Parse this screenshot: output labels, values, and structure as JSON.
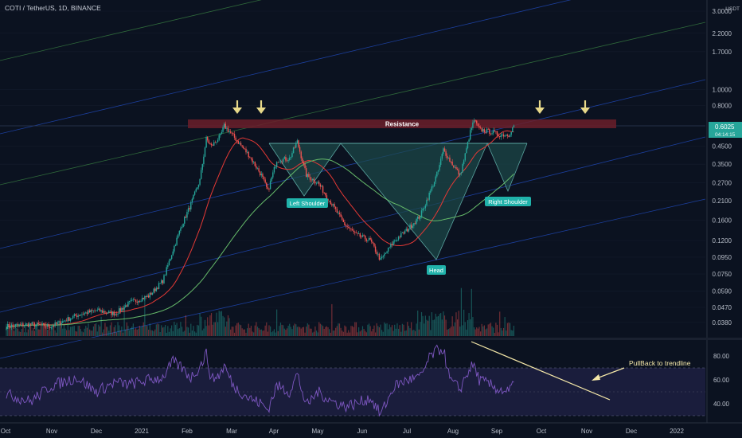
{
  "chart_data": {
    "type": "candlestick",
    "title": "COTI / TetherUS, 1D, BINANCE",
    "price_axis": {
      "unit": "USDT",
      "scale": "log",
      "ticks": [
        "3.0000",
        "2.2000",
        "1.7000",
        "1.0000",
        "0.8000",
        "0.6000",
        "0.4500",
        "0.3500",
        "0.2700",
        "0.2100",
        "0.1600",
        "0.1200",
        "0.0950",
        "0.0750",
        "0.0590",
        "0.0470",
        "0.0380"
      ]
    },
    "last_price": {
      "value": "0.6025",
      "countdown": "04:14:15"
    },
    "x_axis": {
      "labels": [
        "Oct",
        "Nov",
        "Dec",
        "2021",
        "Feb",
        "Mar",
        "Apr",
        "May",
        "Jun",
        "Jul",
        "Aug",
        "Sep",
        "Oct",
        "Nov",
        "Dec",
        "2022"
      ]
    },
    "price_path": [
      [
        "2020-10-01",
        0.036
      ],
      [
        "2020-10-20",
        0.037
      ],
      [
        "2020-11-05",
        0.036
      ],
      [
        "2020-11-25",
        0.042
      ],
      [
        "2020-12-10",
        0.045
      ],
      [
        "2020-12-25",
        0.043
      ],
      [
        "2021-01-05",
        0.05
      ],
      [
        "2021-01-20",
        0.055
      ],
      [
        "2021-01-31",
        0.068
      ],
      [
        "2021-02-08",
        0.105
      ],
      [
        "2021-02-15",
        0.15
      ],
      [
        "2021-02-22",
        0.2
      ],
      [
        "2021-03-01",
        0.28
      ],
      [
        "2021-03-06",
        0.5
      ],
      [
        "2021-03-10",
        0.45
      ],
      [
        "2021-03-17",
        0.52
      ],
      [
        "2021-03-20",
        0.6
      ],
      [
        "2021-03-27",
        0.52
      ],
      [
        "2021-04-08",
        0.4
      ],
      [
        "2021-04-18",
        0.3
      ],
      [
        "2021-04-23",
        0.24
      ],
      [
        "2021-04-30",
        0.37
      ],
      [
        "2021-05-10",
        0.38
      ],
      [
        "2021-05-16",
        0.48
      ],
      [
        "2021-05-23",
        0.3
      ],
      [
        "2021-06-01",
        0.27
      ],
      [
        "2021-06-12",
        0.2
      ],
      [
        "2021-06-22",
        0.15
      ],
      [
        "2021-07-01",
        0.13
      ],
      [
        "2021-07-12",
        0.12
      ],
      [
        "2021-07-20",
        0.091
      ],
      [
        "2021-07-31",
        0.12
      ],
      [
        "2021-08-10",
        0.14
      ],
      [
        "2021-08-20",
        0.17
      ],
      [
        "2021-08-28",
        0.24
      ],
      [
        "2021-09-03",
        0.32
      ],
      [
        "2021-09-07",
        0.43
      ],
      [
        "2021-09-12",
        0.37
      ],
      [
        "2021-09-20",
        0.3
      ],
      [
        "2021-09-24",
        0.4
      ],
      [
        "2021-09-28",
        0.55
      ],
      [
        "2021-10-01",
        0.65
      ],
      [
        "2021-10-05",
        0.57
      ],
      [
        "2021-10-15",
        0.55
      ],
      [
        "2021-10-20",
        0.53
      ],
      [
        "2021-10-28",
        0.53
      ],
      [
        "2021-11-01",
        0.6025
      ]
    ],
    "annotations": {
      "resistance": "Resistance",
      "left_shoulder": "Left Shoulder",
      "head": "Head",
      "right_shoulder": "Right Shoulder",
      "pullback": "PullBack to trendline"
    },
    "rsi": {
      "ticks": [
        "80.00",
        "60.00",
        "40.00"
      ],
      "bands": [
        70,
        30
      ],
      "path": [
        [
          "2020-10-01",
          48
        ],
        [
          "2020-10-20",
          42
        ],
        [
          "2020-11-05",
          55
        ],
        [
          "2020-11-25",
          62
        ],
        [
          "2020-12-10",
          50
        ],
        [
          "2020-12-25",
          58
        ],
        [
          "2021-01-05",
          56
        ],
        [
          "2021-01-20",
          60
        ],
        [
          "2021-01-31",
          62
        ],
        [
          "2021-02-08",
          75
        ],
        [
          "2021-02-15",
          70
        ],
        [
          "2021-02-22",
          62
        ],
        [
          "2021-03-01",
          71
        ],
        [
          "2021-03-06",
          82
        ],
        [
          "2021-03-10",
          60
        ],
        [
          "2021-03-17",
          65
        ],
        [
          "2021-03-20",
          72
        ],
        [
          "2021-03-27",
          55
        ],
        [
          "2021-04-08",
          45
        ],
        [
          "2021-04-18",
          40
        ],
        [
          "2021-04-23",
          35
        ],
        [
          "2021-04-30",
          55
        ],
        [
          "2021-05-10",
          50
        ],
        [
          "2021-05-16",
          65
        ],
        [
          "2021-05-23",
          38
        ],
        [
          "2021-06-01",
          50
        ],
        [
          "2021-06-12",
          42
        ],
        [
          "2021-06-22",
          38
        ],
        [
          "2021-07-01",
          40
        ],
        [
          "2021-07-12",
          45
        ],
        [
          "2021-07-20",
          31
        ],
        [
          "2021-07-31",
          55
        ],
        [
          "2021-08-10",
          60
        ],
        [
          "2021-08-20",
          62
        ],
        [
          "2021-08-28",
          80
        ],
        [
          "2021-09-03",
          85
        ],
        [
          "2021-09-07",
          86
        ],
        [
          "2021-09-12",
          60
        ],
        [
          "2021-09-20",
          52
        ],
        [
          "2021-09-24",
          62
        ],
        [
          "2021-09-28",
          70
        ],
        [
          "2021-10-01",
          72
        ],
        [
          "2021-10-05",
          60
        ],
        [
          "2021-10-15",
          55
        ],
        [
          "2021-10-20",
          52
        ],
        [
          "2021-10-28",
          50
        ],
        [
          "2021-11-01",
          57
        ]
      ]
    },
    "colors": {
      "background": "#0b1220",
      "up": "#26a69a",
      "down": "#ef5350",
      "resistance_band": "#6b1f2a",
      "pattern_fill": "#1d4a4a",
      "label_bg": "#20b2aa",
      "arrow": "#e8d98a",
      "rsi_line": "#7e57c2",
      "rsi_band_fill": "#1c1f3f",
      "trendline": "#f5e8a8",
      "channel_blue": "#2962ff",
      "channel_green": "#4caf50",
      "ma_red": "#e53935",
      "ma_green": "#66bb6a"
    }
  }
}
